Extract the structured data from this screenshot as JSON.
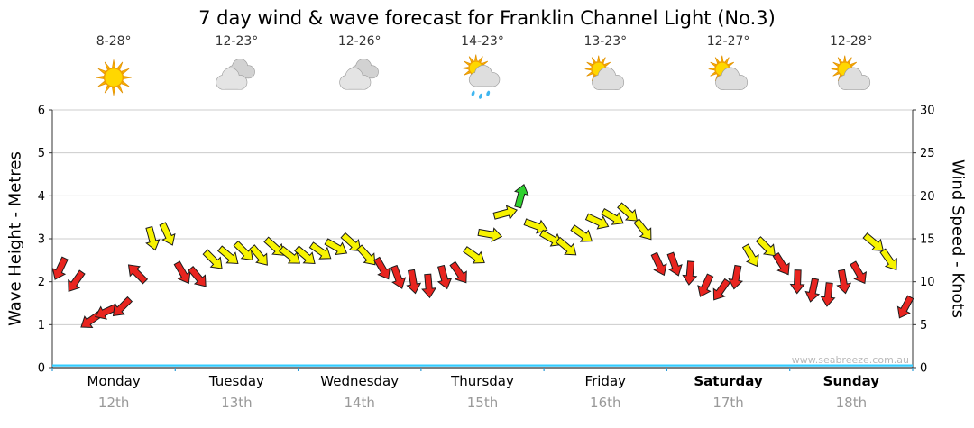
{
  "title": "7 day wind & wave forecast for Franklin Channel Light (No.3)",
  "watermark": "www.seabreeze.com.au",
  "days": [
    {
      "name": "Monday",
      "date": "12th",
      "temp": "8-28°",
      "icon": "sunny",
      "weekend": false
    },
    {
      "name": "Tuesday",
      "date": "13th",
      "temp": "12-23°",
      "icon": "cloudy",
      "weekend": false
    },
    {
      "name": "Wednesday",
      "date": "14th",
      "temp": "12-26°",
      "icon": "cloudy",
      "weekend": false
    },
    {
      "name": "Thursday",
      "date": "15th",
      "temp": "14-23°",
      "icon": "sun-showers",
      "weekend": false
    },
    {
      "name": "Friday",
      "date": "16th",
      "temp": "13-23°",
      "icon": "partly-cloudy",
      "weekend": false
    },
    {
      "name": "Saturday",
      "date": "17th",
      "temp": "12-27°",
      "icon": "partly-cloudy",
      "weekend": true
    },
    {
      "name": "Sunday",
      "date": "18th",
      "temp": "12-28°",
      "icon": "partly-cloudy",
      "weekend": true
    }
  ],
  "left_axis": {
    "label": "Wave Height - Metres",
    "ticks": [
      0,
      1,
      2,
      3,
      4,
      5,
      6
    ]
  },
  "right_axis": {
    "label": "Wind Speed - Knots",
    "ticks": [
      0,
      5,
      10,
      15,
      20,
      25,
      30
    ]
  },
  "chart_data": {
    "type": "line",
    "title": "7 day wind & wave forecast for Franklin Channel Light (No.3)",
    "x_unit": "3-hourly steps across 7 days (Mon 12th - Sun 18th)",
    "points_per_day": 8,
    "grid": "horizontal gridlines at each metre / 5 knots",
    "legend_position": "none",
    "series": [
      {
        "name": "Wind Speed",
        "unit": "knots",
        "axis": "right",
        "ylim": [
          0,
          30
        ],
        "marker": "direction-arrow",
        "values": [
          11.5,
          10,
          5.5,
          6.5,
          7,
          11,
          15,
          15.5,
          11,
          10.5,
          12.5,
          13,
          13.5,
          13,
          14,
          13,
          13,
          13.5,
          14,
          14.5,
          13,
          11.5,
          10.5,
          10,
          9.5,
          10.5,
          11,
          13,
          15.5,
          18,
          20,
          16.5,
          15,
          14,
          15.5,
          17,
          17.5,
          18,
          16,
          12,
          12,
          11,
          9.5,
          9,
          10.5,
          13,
          14,
          12,
          10,
          9,
          8.5,
          10,
          11,
          14.5,
          12.5,
          7
        ],
        "directions_deg": [
          115,
          125,
          145,
          155,
          135,
          225,
          75,
          65,
          60,
          50,
          45,
          40,
          45,
          50,
          42,
          38,
          40,
          35,
          30,
          42,
          48,
          60,
          70,
          80,
          85,
          75,
          55,
          35,
          10,
          345,
          285,
          20,
          30,
          40,
          35,
          25,
          30,
          42,
          52,
          65,
          70,
          95,
          115,
          125,
          100,
          60,
          45,
          58,
          92,
          102,
          96,
          80,
          60,
          40,
          55,
          118
        ],
        "color_scale": [
          {
            "up_to_knots": 12.4,
            "color": "#e8241f"
          },
          {
            "up_to_knots": 19.9,
            "color": "#f7f300"
          },
          {
            "up_to_knots": 30,
            "color": "#2fd12f"
          }
        ],
        "outline_color": "#1c1c1c"
      },
      {
        "name": "Wave Height",
        "unit": "metres",
        "axis": "left",
        "ylim": [
          0,
          6
        ],
        "constant_value": 0.05,
        "color": "#33ccff"
      }
    ]
  }
}
